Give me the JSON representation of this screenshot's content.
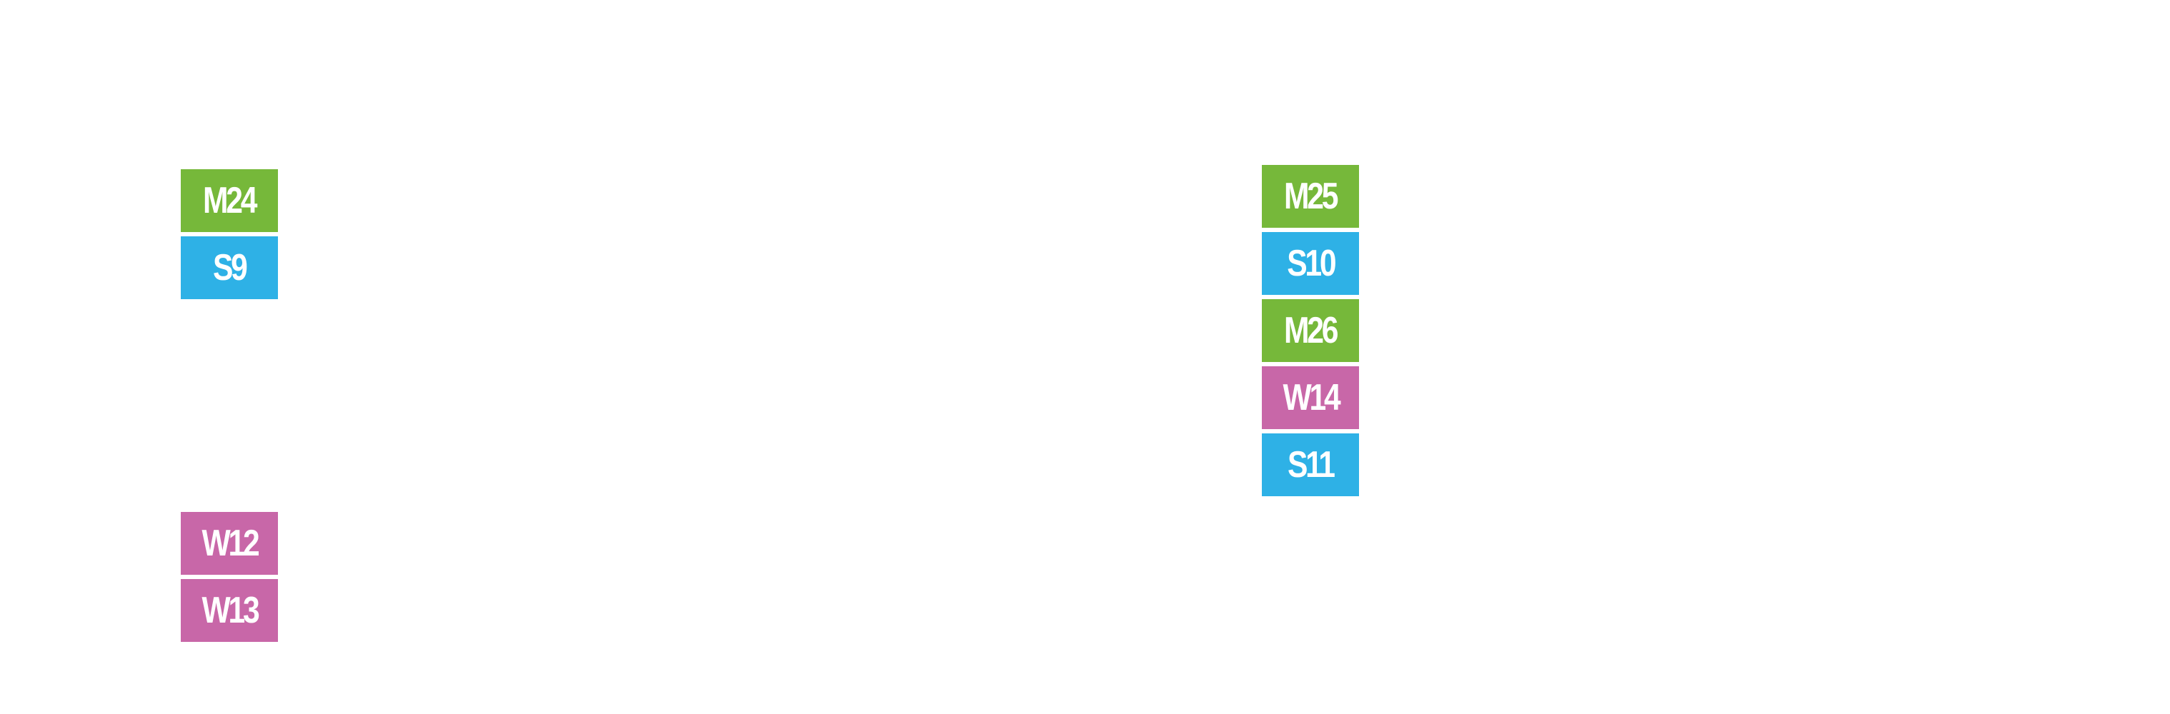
{
  "colors": {
    "M": "#76b83a",
    "S": "#2eb1e6",
    "W": "#c867a8"
  },
  "groups": {
    "left_top": [
      "M24",
      "S9"
    ],
    "left_bottom": [
      "W12",
      "W13"
    ],
    "right": [
      "M25",
      "S10",
      "M26",
      "W14",
      "S11"
    ]
  }
}
